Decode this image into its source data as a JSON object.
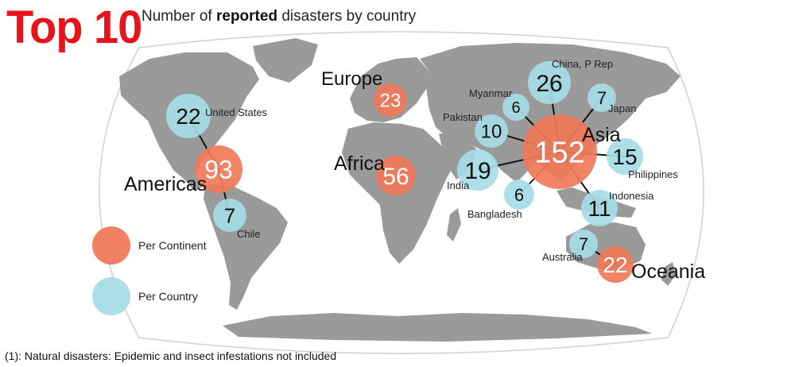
{
  "header": {
    "title": "Top 10",
    "subtitle_pre": "Number of ",
    "subtitle_bold": "reported",
    "subtitle_post": " disasters by country"
  },
  "footnote": "(1): Natural disasters: Epidemic and insect infestations not included",
  "colors": {
    "continent": "#f07a5a",
    "country": "#a6dce6",
    "land": "#9a9a9a",
    "ocean": "#ffffff",
    "outline": "#d0d0d0",
    "connector": "#111111"
  },
  "legend": [
    {
      "label": "Per Continent",
      "kind": "continent"
    },
    {
      "label": "Per Country",
      "kind": "country"
    }
  ],
  "continents": [
    {
      "name": "Americas",
      "value": "93"
    },
    {
      "name": "Europe",
      "value": "23"
    },
    {
      "name": "Africa",
      "value": "56"
    },
    {
      "name": "Asia",
      "value": "152"
    },
    {
      "name": "Oceania",
      "value": "22"
    }
  ],
  "countries": [
    {
      "name": "United States",
      "value": "22",
      "continent": "Americas"
    },
    {
      "name": "Chile",
      "value": "7",
      "continent": "Americas"
    },
    {
      "name": "China, P Rep",
      "value": "26",
      "continent": "Asia"
    },
    {
      "name": "Myanmar",
      "value": "6",
      "continent": "Asia"
    },
    {
      "name": "Japan",
      "value": "7",
      "continent": "Asia"
    },
    {
      "name": "Pakistan",
      "value": "10",
      "continent": "Asia"
    },
    {
      "name": "India",
      "value": "19",
      "continent": "Asia"
    },
    {
      "name": "Philippines",
      "value": "15",
      "continent": "Asia"
    },
    {
      "name": "Bangladesh",
      "value": "6",
      "continent": "Asia"
    },
    {
      "name": "Indonesia",
      "value": "11",
      "continent": "Asia"
    },
    {
      "name": "Australia",
      "value": "7",
      "continent": "Oceania"
    }
  ]
}
